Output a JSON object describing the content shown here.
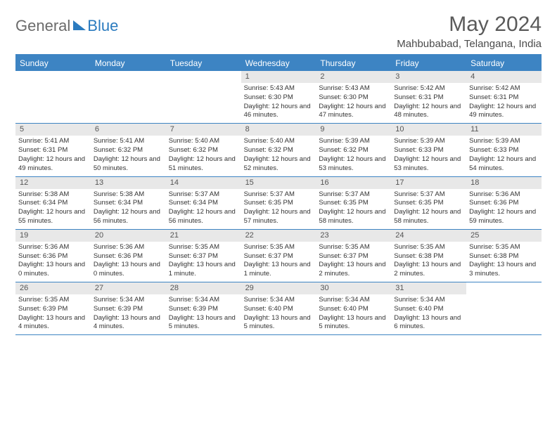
{
  "brand": {
    "left": "General",
    "right": "Blue"
  },
  "title": "May 2024",
  "location": "Mahbubabad, Telangana, India",
  "colors": {
    "accent": "#3d84c3",
    "header_text": "#ffffff",
    "daynum_bg": "#e8e8e8",
    "body_text": "#333333",
    "title_text": "#5a5a5a"
  },
  "day_headers": [
    "Sunday",
    "Monday",
    "Tuesday",
    "Wednesday",
    "Thursday",
    "Friday",
    "Saturday"
  ],
  "weeks": [
    [
      {
        "n": "",
        "sr": "",
        "ss": "",
        "dl": ""
      },
      {
        "n": "",
        "sr": "",
        "ss": "",
        "dl": ""
      },
      {
        "n": "",
        "sr": "",
        "ss": "",
        "dl": ""
      },
      {
        "n": "1",
        "sr": "5:43 AM",
        "ss": "6:30 PM",
        "dl": "12 hours and 46 minutes."
      },
      {
        "n": "2",
        "sr": "5:43 AM",
        "ss": "6:30 PM",
        "dl": "12 hours and 47 minutes."
      },
      {
        "n": "3",
        "sr": "5:42 AM",
        "ss": "6:31 PM",
        "dl": "12 hours and 48 minutes."
      },
      {
        "n": "4",
        "sr": "5:42 AM",
        "ss": "6:31 PM",
        "dl": "12 hours and 49 minutes."
      }
    ],
    [
      {
        "n": "5",
        "sr": "5:41 AM",
        "ss": "6:31 PM",
        "dl": "12 hours and 49 minutes."
      },
      {
        "n": "6",
        "sr": "5:41 AM",
        "ss": "6:32 PM",
        "dl": "12 hours and 50 minutes."
      },
      {
        "n": "7",
        "sr": "5:40 AM",
        "ss": "6:32 PM",
        "dl": "12 hours and 51 minutes."
      },
      {
        "n": "8",
        "sr": "5:40 AM",
        "ss": "6:32 PM",
        "dl": "12 hours and 52 minutes."
      },
      {
        "n": "9",
        "sr": "5:39 AM",
        "ss": "6:32 PM",
        "dl": "12 hours and 53 minutes."
      },
      {
        "n": "10",
        "sr": "5:39 AM",
        "ss": "6:33 PM",
        "dl": "12 hours and 53 minutes."
      },
      {
        "n": "11",
        "sr": "5:39 AM",
        "ss": "6:33 PM",
        "dl": "12 hours and 54 minutes."
      }
    ],
    [
      {
        "n": "12",
        "sr": "5:38 AM",
        "ss": "6:34 PM",
        "dl": "12 hours and 55 minutes."
      },
      {
        "n": "13",
        "sr": "5:38 AM",
        "ss": "6:34 PM",
        "dl": "12 hours and 56 minutes."
      },
      {
        "n": "14",
        "sr": "5:37 AM",
        "ss": "6:34 PM",
        "dl": "12 hours and 56 minutes."
      },
      {
        "n": "15",
        "sr": "5:37 AM",
        "ss": "6:35 PM",
        "dl": "12 hours and 57 minutes."
      },
      {
        "n": "16",
        "sr": "5:37 AM",
        "ss": "6:35 PM",
        "dl": "12 hours and 58 minutes."
      },
      {
        "n": "17",
        "sr": "5:37 AM",
        "ss": "6:35 PM",
        "dl": "12 hours and 58 minutes."
      },
      {
        "n": "18",
        "sr": "5:36 AM",
        "ss": "6:36 PM",
        "dl": "12 hours and 59 minutes."
      }
    ],
    [
      {
        "n": "19",
        "sr": "5:36 AM",
        "ss": "6:36 PM",
        "dl": "13 hours and 0 minutes."
      },
      {
        "n": "20",
        "sr": "5:36 AM",
        "ss": "6:36 PM",
        "dl": "13 hours and 0 minutes."
      },
      {
        "n": "21",
        "sr": "5:35 AM",
        "ss": "6:37 PM",
        "dl": "13 hours and 1 minute."
      },
      {
        "n": "22",
        "sr": "5:35 AM",
        "ss": "6:37 PM",
        "dl": "13 hours and 1 minute."
      },
      {
        "n": "23",
        "sr": "5:35 AM",
        "ss": "6:37 PM",
        "dl": "13 hours and 2 minutes."
      },
      {
        "n": "24",
        "sr": "5:35 AM",
        "ss": "6:38 PM",
        "dl": "13 hours and 2 minutes."
      },
      {
        "n": "25",
        "sr": "5:35 AM",
        "ss": "6:38 PM",
        "dl": "13 hours and 3 minutes."
      }
    ],
    [
      {
        "n": "26",
        "sr": "5:35 AM",
        "ss": "6:39 PM",
        "dl": "13 hours and 4 minutes."
      },
      {
        "n": "27",
        "sr": "5:34 AM",
        "ss": "6:39 PM",
        "dl": "13 hours and 4 minutes."
      },
      {
        "n": "28",
        "sr": "5:34 AM",
        "ss": "6:39 PM",
        "dl": "13 hours and 5 minutes."
      },
      {
        "n": "29",
        "sr": "5:34 AM",
        "ss": "6:40 PM",
        "dl": "13 hours and 5 minutes."
      },
      {
        "n": "30",
        "sr": "5:34 AM",
        "ss": "6:40 PM",
        "dl": "13 hours and 5 minutes."
      },
      {
        "n": "31",
        "sr": "5:34 AM",
        "ss": "6:40 PM",
        "dl": "13 hours and 6 minutes."
      },
      {
        "n": "",
        "sr": "",
        "ss": "",
        "dl": ""
      }
    ]
  ],
  "labels": {
    "sunrise": "Sunrise:",
    "sunset": "Sunset:",
    "daylight": "Daylight:"
  }
}
